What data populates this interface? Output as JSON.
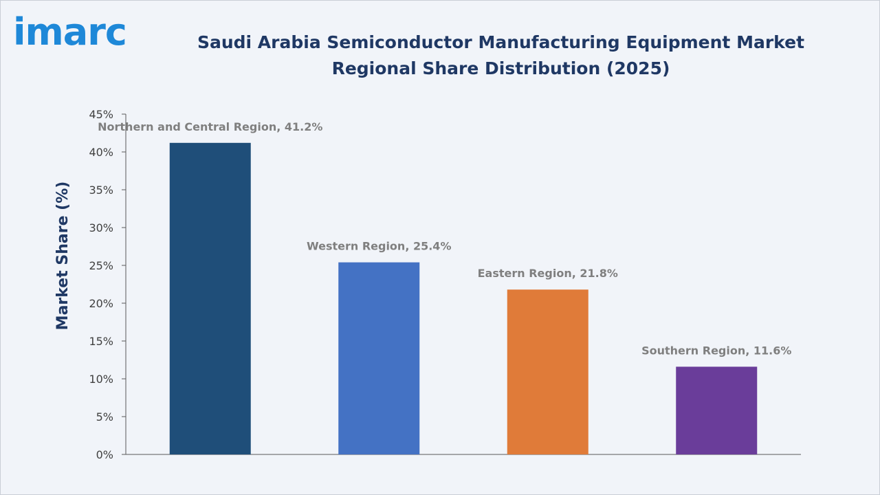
{
  "brand": {
    "logo_text": "imarc",
    "logo_color": "#1e88d8"
  },
  "header": {
    "title": "Saudi Arabia Semiconductor Manufacturing Equipment Market Regional Share Distribution (2025)"
  },
  "chart_data": {
    "type": "bar",
    "title": "Saudi Arabia Semiconductor Manufacturing Equipment Market Regional Share Distribution (2025)",
    "xlabel": "",
    "ylabel": "Market Share (%)",
    "categories": [
      "Northern and Central Region",
      "Western Region",
      "Eastern Region",
      "Southern Region"
    ],
    "values": [
      41.2,
      25.4,
      21.8,
      11.6
    ],
    "data_labels": [
      "Northern and Central Region, 41.2%",
      "Western Region, 25.4%",
      "Eastern Region, 21.8%",
      "Southern Region, 11.6%"
    ],
    "colors": [
      "#1f4e79",
      "#4472c4",
      "#e07b39",
      "#6a3d9a"
    ],
    "ylim": [
      0,
      45
    ],
    "yticks": [
      0,
      5,
      10,
      15,
      20,
      25,
      30,
      35,
      40,
      45
    ],
    "ytick_labels": [
      "0%",
      "5%",
      "10%",
      "15%",
      "20%",
      "25%",
      "30%",
      "35%",
      "40%",
      "45%"
    ],
    "grid": false,
    "legend": "none"
  }
}
